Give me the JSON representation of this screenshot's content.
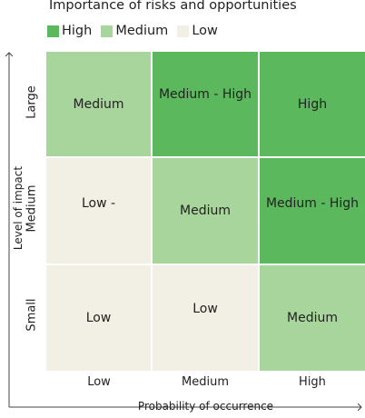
{
  "chart_data": {
    "type": "heatmap",
    "title": "Importance of risks and opportunities",
    "xlabel": "Probability of occurrence",
    "ylabel": "Level of impact",
    "x_categories": [
      "Low",
      "Medium",
      "High"
    ],
    "y_categories": [
      "Large",
      "Medium",
      "Small"
    ],
    "legend": [
      {
        "label": "High",
        "color": "#5cb85c"
      },
      {
        "label": "Medium",
        "color": "#a8d59b"
      },
      {
        "label": "Low",
        "color": "#f2efe4"
      }
    ],
    "cells": [
      [
        {
          "label": "Medium",
          "level": "Medium"
        },
        {
          "label": "Medium - High",
          "level": "High"
        },
        {
          "label": "High",
          "level": "High"
        }
      ],
      [
        {
          "label": "Low -",
          "level": "Low"
        },
        {
          "label": "Medium",
          "level": "Medium"
        },
        {
          "label": "Medium - High",
          "level": "High"
        }
      ],
      [
        {
          "label": "Low",
          "level": "Low"
        },
        {
          "label": "Low",
          "level": "Low"
        },
        {
          "label": "Medium",
          "level": "Medium"
        }
      ]
    ]
  }
}
